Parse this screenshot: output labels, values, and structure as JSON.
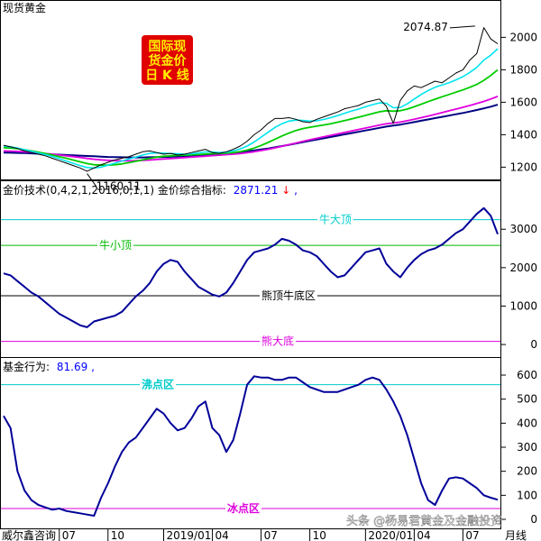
{
  "colors": {
    "panel_border": "#000000",
    "price_line": "#000000",
    "ma_cyan": "#00e5ee",
    "ma_green": "#00cc00",
    "ma_magenta": "#e000e0",
    "ma_navy": "#000080",
    "indicator_line": "#000099",
    "fund_line": "#000099",
    "ref_cyan": "#00cccc",
    "ref_green": "#00bb00",
    "ref_black": "#000000",
    "ref_magenta": "#dd00dd",
    "badge_bg": "#e00000",
    "badge_text": "#ffee00",
    "title_blue": "#0000ff",
    "down_arrow": "#ff0000",
    "watermark": "#ffffff"
  },
  "badge": {
    "line1": "国际现",
    "line2": "货金价",
    "line3": "日 K 线"
  },
  "x_axis": {
    "end_label": "月线",
    "ticks": [
      {
        "label": "威尔鑫咨询",
        "i": 0
      },
      {
        "label": "07",
        "i": 8
      },
      {
        "label": "10",
        "i": 15
      },
      {
        "label": "2019/01",
        "i": 23
      },
      {
        "label": "04",
        "i": 30
      },
      {
        "label": "07",
        "i": 37
      },
      {
        "label": "10",
        "i": 44
      },
      {
        "label": "2020/01",
        "i": 52
      },
      {
        "label": "04",
        "i": 59
      },
      {
        "label": "07",
        "i": 66
      }
    ]
  },
  "watermark": "头条 @杨易君黄金及金融投资",
  "chart_data": [
    {
      "type": "line",
      "title": "现货黄金",
      "annotations": [
        {
          "text": "2074.87",
          "x": 68,
          "y": 2074.87,
          "kind": "high"
        },
        {
          "text": "1160.11",
          "x": 12,
          "y": 1160.11,
          "kind": "low"
        }
      ],
      "ylim": [
        1130,
        2130
      ],
      "y_ticks": [
        1200,
        1400,
        1600,
        1800,
        2000
      ],
      "x_count": 72,
      "series": [
        {
          "role": "price",
          "values": [
            1335,
            1325,
            1315,
            1300,
            1290,
            1280,
            1270,
            1255,
            1240,
            1225,
            1210,
            1195,
            1175,
            1195,
            1215,
            1230,
            1245,
            1255,
            1265,
            1280,
            1295,
            1300,
            1290,
            1280,
            1285,
            1275,
            1280,
            1290,
            1300,
            1310,
            1290,
            1285,
            1295,
            1310,
            1330,
            1360,
            1400,
            1430,
            1470,
            1500,
            1500,
            1505,
            1495,
            1480,
            1475,
            1495,
            1510,
            1525,
            1540,
            1560,
            1570,
            1580,
            1600,
            1610,
            1620,
            1575,
            1470,
            1610,
            1670,
            1700,
            1690,
            1710,
            1730,
            1720,
            1750,
            1780,
            1800,
            1860,
            1900,
            2060,
            1990,
            1960
          ]
        },
        {
          "role": "ma_short",
          "values": [
            1330,
            1325,
            1318,
            1308,
            1298,
            1288,
            1278,
            1266,
            1252,
            1238,
            1224,
            1210,
            1198,
            1195,
            1200,
            1212,
            1225,
            1238,
            1250,
            1262,
            1275,
            1285,
            1288,
            1286,
            1284,
            1282,
            1280,
            1283,
            1288,
            1294,
            1294,
            1290,
            1292,
            1300,
            1312,
            1330,
            1355,
            1385,
            1415,
            1445,
            1468,
            1484,
            1490,
            1488,
            1484,
            1486,
            1494,
            1505,
            1518,
            1532,
            1546,
            1558,
            1572,
            1585,
            1596,
            1594,
            1566,
            1568,
            1590,
            1620,
            1648,
            1672,
            1692,
            1706,
            1720,
            1738,
            1758,
            1784,
            1815,
            1860,
            1890,
            1930
          ]
        },
        {
          "role": "ma_mid",
          "values": [
            1320,
            1318,
            1314,
            1308,
            1300,
            1292,
            1284,
            1275,
            1265,
            1255,
            1244,
            1233,
            1222,
            1215,
            1212,
            1212,
            1215,
            1220,
            1228,
            1236,
            1245,
            1254,
            1262,
            1267,
            1270,
            1272,
            1274,
            1276,
            1278,
            1281,
            1283,
            1284,
            1286,
            1290,
            1296,
            1305,
            1318,
            1334,
            1352,
            1372,
            1392,
            1410,
            1426,
            1438,
            1446,
            1453,
            1460,
            1468,
            1477,
            1487,
            1497,
            1508,
            1519,
            1530,
            1541,
            1548,
            1545,
            1548,
            1558,
            1572,
            1588,
            1604,
            1619,
            1634,
            1648,
            1662,
            1676,
            1692,
            1710,
            1735,
            1765,
            1800
          ]
        },
        {
          "role": "ma_long",
          "values": [
            1300,
            1299,
            1297,
            1295,
            1292,
            1288,
            1284,
            1280,
            1275,
            1270,
            1265,
            1260,
            1254,
            1249,
            1245,
            1242,
            1240,
            1239,
            1239,
            1240,
            1242,
            1244,
            1247,
            1250,
            1253,
            1256,
            1259,
            1262,
            1265,
            1268,
            1271,
            1274,
            1277,
            1280,
            1284,
            1289,
            1295,
            1302,
            1310,
            1319,
            1329,
            1339,
            1349,
            1359,
            1369,
            1378,
            1387,
            1396,
            1405,
            1414,
            1423,
            1432,
            1441,
            1450,
            1459,
            1467,
            1472,
            1478,
            1486,
            1495,
            1505,
            1515,
            1525,
            1536,
            1547,
            1558,
            1569,
            1580,
            1592,
            1605,
            1620,
            1636
          ]
        },
        {
          "role": "ma_longest",
          "values": [
            1290,
            1289,
            1288,
            1287,
            1285,
            1283,
            1281,
            1279,
            1277,
            1275,
            1273,
            1271,
            1269,
            1267,
            1265,
            1263,
            1262,
            1261,
            1260,
            1260,
            1260,
            1261,
            1262,
            1263,
            1264,
            1266,
            1268,
            1270,
            1272,
            1275,
            1278,
            1281,
            1285,
            1289,
            1293,
            1298,
            1303,
            1309,
            1315,
            1322,
            1330,
            1338,
            1346,
            1354,
            1362,
            1370,
            1378,
            1386,
            1394,
            1402,
            1410,
            1418,
            1426,
            1434,
            1442,
            1450,
            1456,
            1462,
            1470,
            1478,
            1486,
            1494,
            1502,
            1510,
            1518,
            1526,
            1534,
            1543,
            1552,
            1562,
            1573,
            1585
          ]
        }
      ]
    },
    {
      "type": "line",
      "title": "金价技术(0,4,2,1,2016,0,1,1) 金价综合指标:",
      "current_value_label": "2871.21",
      "ylim": [
        -280,
        3850
      ],
      "y_ticks": [
        0,
        1000,
        2000,
        3000
      ],
      "x_count": 72,
      "reference_lines": [
        {
          "label": "牛大顶",
          "y": 3250,
          "color_key": "ref_cyan"
        },
        {
          "label": "牛小顶",
          "y": 2580,
          "color_key": "ref_green"
        },
        {
          "label": "熊顶牛底区",
          "y": 1270,
          "color_key": "ref_black"
        },
        {
          "label": "熊大底",
          "y": 80,
          "color_key": "ref_magenta"
        }
      ],
      "values": [
        1850,
        1800,
        1650,
        1500,
        1350,
        1250,
        1100,
        950,
        800,
        700,
        600,
        500,
        450,
        600,
        650,
        700,
        750,
        850,
        1050,
        1250,
        1400,
        1600,
        1900,
        2100,
        2200,
        2150,
        1900,
        1700,
        1500,
        1400,
        1300,
        1250,
        1350,
        1600,
        1900,
        2200,
        2400,
        2450,
        2500,
        2600,
        2750,
        2700,
        2600,
        2450,
        2400,
        2300,
        2100,
        1900,
        1750,
        1800,
        2000,
        2200,
        2400,
        2450,
        2500,
        2100,
        1900,
        1750,
        2000,
        2200,
        2350,
        2450,
        2500,
        2600,
        2750,
        2900,
        3000,
        3200,
        3400,
        3550,
        3350,
        2871
      ]
    },
    {
      "type": "line",
      "title": "基金行为:",
      "current_value_label": "81.69",
      "ylim": [
        -30,
        660
      ],
      "y_ticks": [
        0,
        100,
        200,
        300,
        400,
        500,
        600
      ],
      "x_count": 72,
      "reference_lines": [
        {
          "label": "沸点区",
          "y": 560,
          "color_key": "ref_cyan"
        },
        {
          "label": "冰点区",
          "y": 45,
          "color_key": "ref_magenta"
        }
      ],
      "values": [
        430,
        380,
        200,
        120,
        80,
        60,
        50,
        40,
        45,
        35,
        30,
        25,
        20,
        15,
        90,
        150,
        220,
        280,
        320,
        340,
        380,
        420,
        460,
        440,
        400,
        370,
        380,
        420,
        470,
        490,
        380,
        350,
        280,
        330,
        440,
        560,
        595,
        590,
        590,
        580,
        580,
        590,
        590,
        570,
        550,
        540,
        530,
        530,
        530,
        540,
        550,
        560,
        580,
        590,
        580,
        540,
        490,
        430,
        350,
        250,
        150,
        80,
        60,
        120,
        170,
        175,
        170,
        150,
        130,
        100,
        90,
        81.69
      ]
    }
  ]
}
